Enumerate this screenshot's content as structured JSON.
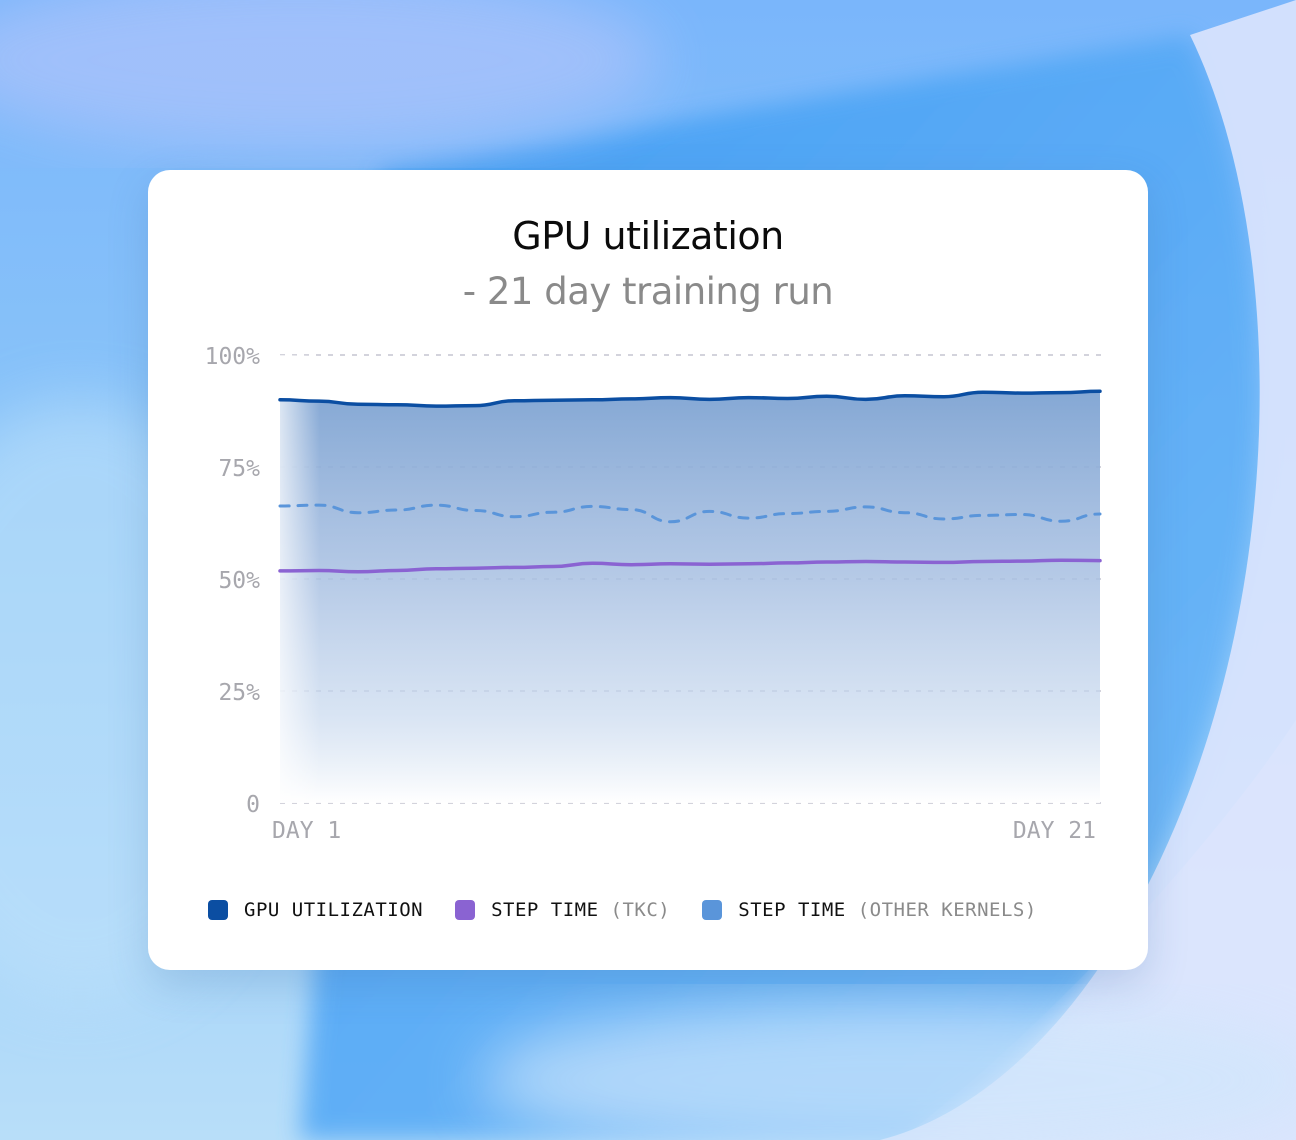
{
  "chart": {
    "title": "GPU utilization",
    "subtitle": "- 21 day training run"
  },
  "legend": [
    {
      "label": "GPU UTILIZATION",
      "sub": "",
      "color": "#0b4ea2"
    },
    {
      "label": "STEP TIME",
      "sub": "(TKC)",
      "color": "#8a63d2"
    },
    {
      "label": "STEP TIME",
      "sub": "(OTHER KERNELS)",
      "color": "#5a95da"
    }
  ],
  "chart_data": {
    "type": "area",
    "title": "GPU utilization",
    "subtitle": "- 21 day training run",
    "xlabel": "",
    "ylabel": "",
    "x_tick_labels": [
      "DAY 1",
      "DAY 21"
    ],
    "y_ticks": [
      0,
      25,
      50,
      75,
      100
    ],
    "y_tick_labels": [
      "0",
      "25%",
      "50%",
      "75%",
      "100%"
    ],
    "ylim": [
      0,
      100
    ],
    "grid": true,
    "legend_position": "bottom",
    "series": [
      {
        "name": "GPU UTILIZATION",
        "color": "#0b4ea2",
        "style": "solid-area",
        "values": [
          90,
          89.7,
          89,
          88.9,
          88.6,
          88.7,
          89.8,
          89.9,
          90,
          90.2,
          90.5,
          90.1,
          90.5,
          90.3,
          90.8,
          90.1,
          90.9,
          90.7,
          91.7,
          91.5,
          91.6,
          91.9
        ]
      },
      {
        "name": "STEP TIME (TKC)",
        "color": "#8a63d2",
        "style": "solid",
        "values": [
          51.8,
          51.9,
          51.6,
          51.9,
          52.3,
          52.4,
          52.6,
          52.8,
          53.5,
          53.2,
          53.4,
          53.3,
          53.4,
          53.6,
          53.8,
          53.9,
          53.8,
          53.7,
          53.9,
          54,
          54.2,
          54.1
        ]
      },
      {
        "name": "STEP TIME (OTHER KERNELS)",
        "color": "#5a95da",
        "style": "dashed",
        "values": [
          66.3,
          66.5,
          64.8,
          65.4,
          66.5,
          65.3,
          63.9,
          64.9,
          66.2,
          65.5,
          62.8,
          65.1,
          63.6,
          64.6,
          65.1,
          66.1,
          64.8,
          63.4,
          64.2,
          64.4,
          62.9,
          64.5
        ]
      }
    ]
  }
}
